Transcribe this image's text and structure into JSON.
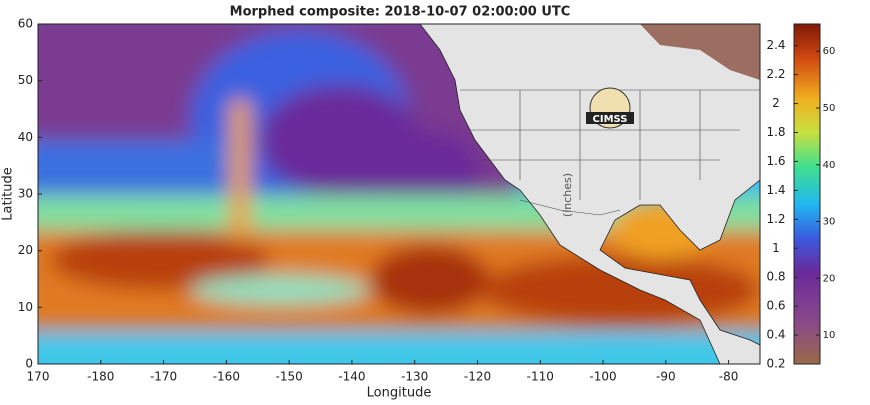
{
  "map": {
    "title": "Morphed composite: 2018-10-07 02:00:00 UTC",
    "x_label": "Longitude",
    "y_label": "Latitude",
    "xlim": [
      170,
      285
    ],
    "xticks": [
      {
        "value": 170,
        "label": "170"
      },
      {
        "value": 180,
        "label": "-180"
      },
      {
        "value": 190,
        "label": "-170"
      },
      {
        "value": 200,
        "label": "-160"
      },
      {
        "value": 210,
        "label": "-150"
      },
      {
        "value": 220,
        "label": "-140"
      },
      {
        "value": 230,
        "label": "-130"
      },
      {
        "value": 240,
        "label": "-120"
      },
      {
        "value": 250,
        "label": "-110"
      },
      {
        "value": 260,
        "label": "-100"
      },
      {
        "value": 270,
        "label": "-90"
      },
      {
        "value": 280,
        "label": "-80"
      }
    ],
    "ylim": [
      0,
      60
    ],
    "yticks": [
      0,
      10,
      20,
      30,
      40,
      50,
      60
    ],
    "colorbar": {
      "label": "(inches)",
      "inch_lim": [
        0.2,
        2.55
      ],
      "inch_ticks": [
        0.2,
        0.4,
        0.6,
        0.8,
        1,
        1.2,
        1.4,
        1.6,
        1.8,
        2,
        2.2,
        2.4
      ],
      "mm_lim": [
        4.9,
        64.8
      ],
      "mm_ticks": [
        10,
        20,
        30,
        40,
        50,
        60
      ]
    },
    "logo": "CIMSS"
  }
}
